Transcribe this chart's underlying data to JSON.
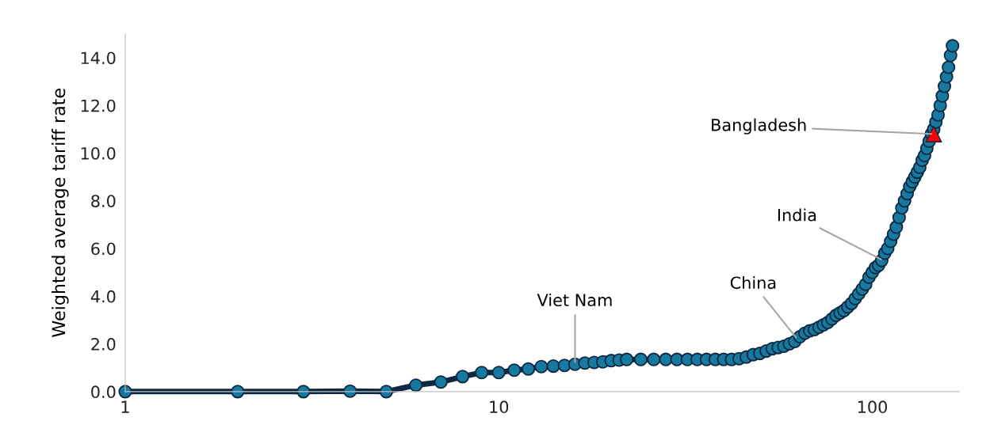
{
  "chart_data": {
    "type": "line",
    "ylabel": "Weighted average tariff rate",
    "log": "x",
    "xlim": [
      1,
      171
    ],
    "ylim": [
      0,
      15
    ],
    "xticks": [
      1,
      10,
      100
    ],
    "yticks": [
      {
        "value": 0,
        "label": "0.0"
      },
      {
        "value": 2,
        "label": "2.0"
      },
      {
        "value": 4,
        "label": "4.0"
      },
      {
        "value": 6,
        "label": "6.0"
      },
      {
        "value": 8,
        "label": "8.0"
      },
      {
        "value": 10,
        "label": "10.0"
      },
      {
        "value": 12,
        "label": "12.0"
      },
      {
        "value": 14,
        "label": "14.0"
      }
    ],
    "grid": false,
    "line_style": "solid",
    "series": [
      {
        "color": "#0e2841",
        "marker": "circle",
        "x": [
          1,
          2,
          3,
          4,
          5,
          6,
          7,
          8,
          9,
          10,
          11,
          12,
          13,
          14,
          15,
          16,
          17,
          18,
          19,
          20,
          21,
          22,
          24,
          26,
          28,
          30,
          32,
          34,
          36,
          38,
          40,
          42,
          44,
          46,
          48,
          50,
          52,
          54,
          56,
          58,
          60,
          62,
          64,
          66,
          68,
          70,
          72,
          74,
          76,
          78,
          80,
          82,
          84,
          86,
          88,
          90,
          92,
          94,
          96,
          98,
          100,
          102,
          104,
          106,
          108,
          110,
          112,
          114,
          116,
          118,
          120,
          122,
          124,
          126,
          128,
          130,
          132,
          134,
          136,
          138,
          140,
          142,
          144,
          146,
          148,
          150,
          152,
          154,
          156,
          158,
          160,
          162,
          164
        ],
        "values": [
          0,
          0,
          0,
          0.02,
          0,
          0.27,
          0.4,
          0.63,
          0.8,
          0.8,
          0.9,
          0.95,
          1.05,
          1.07,
          1.1,
          1.15,
          1.2,
          1.22,
          1.25,
          1.3,
          1.32,
          1.35,
          1.35,
          1.35,
          1.35,
          1.35,
          1.35,
          1.35,
          1.35,
          1.35,
          1.35,
          1.35,
          1.38,
          1.45,
          1.55,
          1.6,
          1.7,
          1.8,
          1.85,
          1.9,
          2.0,
          2.1,
          2.3,
          2.45,
          2.55,
          2.6,
          2.7,
          2.8,
          2.9,
          3.05,
          3.2,
          3.3,
          3.4,
          3.55,
          3.7,
          3.9,
          4.1,
          4.3,
          4.5,
          4.8,
          5.0,
          5.2,
          5.3,
          5.5,
          5.8,
          6.0,
          6.3,
          6.6,
          6.9,
          7.3,
          7.7,
          8.0,
          8.3,
          8.6,
          8.8,
          9.0,
          9.2,
          9.4,
          9.7,
          9.9,
          10.2,
          10.5,
          10.8,
          11.0,
          11.3,
          11.6,
          12.0,
          12.4,
          12.8,
          13.2,
          13.6,
          14.1,
          14.5
        ]
      },
      {
        "type": "scatter",
        "color": "#ff0000",
        "marker": "triangle",
        "x": [
          146
        ],
        "values": [
          10.8
        ]
      }
    ],
    "annotations": [
      {
        "text": "Viet Nam",
        "x": 16,
        "y": 1.15
      },
      {
        "text": "China",
        "x": 63,
        "y": 2.2
      },
      {
        "text": "India",
        "x": 107,
        "y": 5.5
      },
      {
        "text": "Bangladesh",
        "x": 146,
        "y": 10.8
      }
    ]
  }
}
